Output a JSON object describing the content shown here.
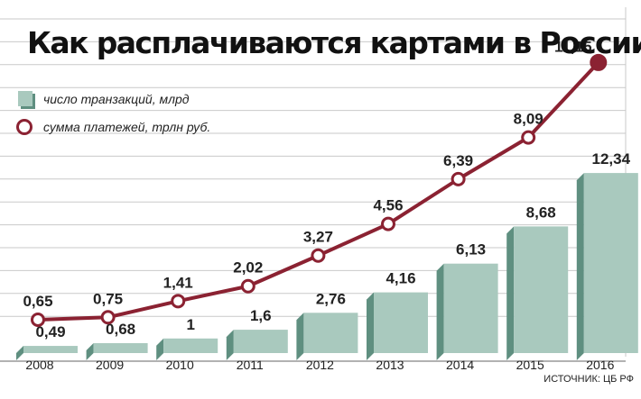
{
  "title": "Как расплачиваются картами в России",
  "legend": {
    "bars": "число транзакций, млрд",
    "line": "сумма платежей, трлн руб."
  },
  "source": "ИСТОЧНИК: ЦБ РФ",
  "colors": {
    "bar": "#a9c9be",
    "bar_side": "#5f8f80",
    "line": "#8b2232",
    "grid": "#c9c9c9"
  },
  "chart_data": {
    "type": "bar",
    "categories": [
      "2008",
      "2009",
      "2010",
      "2011",
      "2012",
      "2013",
      "2014",
      "2015",
      "2016"
    ],
    "series": [
      {
        "name": "число транзакций, млрд",
        "type": "bar",
        "values": [
          0.49,
          0.68,
          1,
          1.6,
          2.76,
          4.16,
          6.13,
          8.68,
          12.34
        ],
        "labels": [
          "0,49",
          "0,68",
          "1",
          "1,6",
          "2,76",
          "4,16",
          "6,13",
          "8,68",
          "12,34"
        ]
      },
      {
        "name": "сумма платежей, трлн руб.",
        "type": "line",
        "values": [
          0.65,
          0.75,
          1.41,
          2.02,
          3.27,
          4.56,
          6.39,
          8.09,
          11.15
        ],
        "labels": [
          "0,65",
          "0,75",
          "1,41",
          "2,02",
          "3,27",
          "4,56",
          "6,39",
          "8,09",
          "11,15"
        ]
      }
    ],
    "grid": true,
    "legend_position": "top-left"
  }
}
